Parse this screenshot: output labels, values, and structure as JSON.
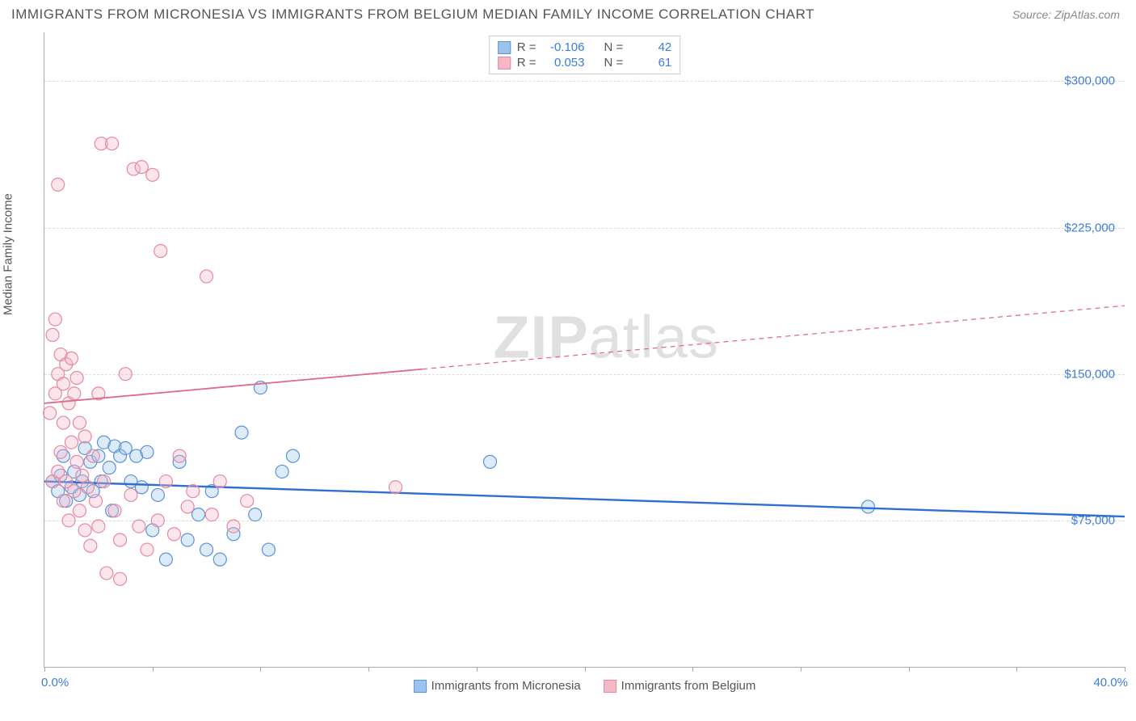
{
  "title": "IMMIGRANTS FROM MICRONESIA VS IMMIGRANTS FROM BELGIUM MEDIAN FAMILY INCOME CORRELATION CHART",
  "source": "Source: ZipAtlas.com",
  "ylabel": "Median Family Income",
  "watermark_bold": "ZIP",
  "watermark_rest": "atlas",
  "chart": {
    "type": "scatter",
    "xlim": [
      0,
      40
    ],
    "ylim": [
      0,
      325000
    ],
    "x_tick_positions": [
      0,
      4,
      8,
      12,
      16,
      20,
      24,
      28,
      32,
      36,
      40
    ],
    "x_start_label": "0.0%",
    "x_end_label": "40.0%",
    "y_gridlines": [
      75000,
      150000,
      225000,
      300000
    ],
    "y_tick_labels": [
      "$75,000",
      "$150,000",
      "$225,000",
      "$300,000"
    ],
    "grid_color": "#dddddd",
    "axis_color": "#aaaaaa",
    "background_color": "#ffffff",
    "ylabel_color": "#3b7dd8",
    "marker_radius": 8,
    "marker_fill_opacity": 0.35,
    "marker_stroke_width": 1.2,
    "series": [
      {
        "name": "Immigrants from Micronesia",
        "color_fill": "#9dc3ec",
        "color_stroke": "#5a94d6",
        "r_value": "-0.106",
        "n_value": "42",
        "trend": {
          "x1": 0,
          "y1": 95000,
          "x2": 40,
          "y2": 77000,
          "color": "#2f6fd0",
          "width": 2.4,
          "solid_until_x": 40
        },
        "points": [
          [
            0.3,
            95000
          ],
          [
            0.5,
            90000
          ],
          [
            0.6,
            98000
          ],
          [
            0.7,
            108000
          ],
          [
            0.8,
            85000
          ],
          [
            1.0,
            92000
          ],
          [
            1.1,
            100000
          ],
          [
            1.3,
            88000
          ],
          [
            1.4,
            95000
          ],
          [
            1.5,
            112000
          ],
          [
            1.7,
            105000
          ],
          [
            1.8,
            90000
          ],
          [
            2.0,
            108000
          ],
          [
            2.1,
            95000
          ],
          [
            2.2,
            115000
          ],
          [
            2.4,
            102000
          ],
          [
            2.5,
            80000
          ],
          [
            2.6,
            113000
          ],
          [
            2.8,
            108000
          ],
          [
            3.0,
            112000
          ],
          [
            3.2,
            95000
          ],
          [
            3.4,
            108000
          ],
          [
            3.6,
            92000
          ],
          [
            3.8,
            110000
          ],
          [
            4.0,
            70000
          ],
          [
            4.2,
            88000
          ],
          [
            4.5,
            55000
          ],
          [
            5.0,
            105000
          ],
          [
            5.3,
            65000
          ],
          [
            5.7,
            78000
          ],
          [
            6.0,
            60000
          ],
          [
            6.2,
            90000
          ],
          [
            6.5,
            55000
          ],
          [
            7.0,
            68000
          ],
          [
            7.3,
            120000
          ],
          [
            7.8,
            78000
          ],
          [
            8.0,
            143000
          ],
          [
            8.3,
            60000
          ],
          [
            8.8,
            100000
          ],
          [
            9.2,
            108000
          ],
          [
            16.5,
            105000
          ],
          [
            30.5,
            82000
          ]
        ]
      },
      {
        "name": "Immigrants from Belgium",
        "color_fill": "#f4b8c6",
        "color_stroke": "#e788a3",
        "r_value": "0.053",
        "n_value": "61",
        "trend": {
          "x1": 0,
          "y1": 135000,
          "x2": 40,
          "y2": 185000,
          "color": "#e06a8a",
          "width": 1.8,
          "solid_until_x": 14
        },
        "points": [
          [
            0.2,
            130000
          ],
          [
            0.3,
            95000
          ],
          [
            0.3,
            170000
          ],
          [
            0.4,
            140000
          ],
          [
            0.4,
            178000
          ],
          [
            0.5,
            100000
          ],
          [
            0.5,
            150000
          ],
          [
            0.5,
            247000
          ],
          [
            0.6,
            110000
          ],
          [
            0.6,
            160000
          ],
          [
            0.7,
            85000
          ],
          [
            0.7,
            125000
          ],
          [
            0.7,
            145000
          ],
          [
            0.8,
            95000
          ],
          [
            0.8,
            155000
          ],
          [
            0.9,
            75000
          ],
          [
            0.9,
            135000
          ],
          [
            1.0,
            115000
          ],
          [
            1.0,
            158000
          ],
          [
            1.1,
            90000
          ],
          [
            1.1,
            140000
          ],
          [
            1.2,
            105000
          ],
          [
            1.2,
            148000
          ],
          [
            1.3,
            80000
          ],
          [
            1.3,
            125000
          ],
          [
            1.4,
            98000
          ],
          [
            1.5,
            70000
          ],
          [
            1.5,
            118000
          ],
          [
            1.6,
            92000
          ],
          [
            1.7,
            62000
          ],
          [
            1.8,
            108000
          ],
          [
            1.9,
            85000
          ],
          [
            2.0,
            72000
          ],
          [
            2.0,
            140000
          ],
          [
            2.1,
            268000
          ],
          [
            2.2,
            95000
          ],
          [
            2.3,
            48000
          ],
          [
            2.5,
            268000
          ],
          [
            2.6,
            80000
          ],
          [
            2.8,
            65000
          ],
          [
            2.8,
            45000
          ],
          [
            3.0,
            150000
          ],
          [
            3.2,
            88000
          ],
          [
            3.3,
            255000
          ],
          [
            3.5,
            72000
          ],
          [
            3.6,
            256000
          ],
          [
            3.8,
            60000
          ],
          [
            4.0,
            252000
          ],
          [
            4.2,
            75000
          ],
          [
            4.3,
            213000
          ],
          [
            4.5,
            95000
          ],
          [
            4.8,
            68000
          ],
          [
            5.0,
            108000
          ],
          [
            5.3,
            82000
          ],
          [
            5.5,
            90000
          ],
          [
            6.0,
            200000
          ],
          [
            6.2,
            78000
          ],
          [
            6.5,
            95000
          ],
          [
            7.0,
            72000
          ],
          [
            7.5,
            85000
          ],
          [
            13.0,
            92000
          ]
        ]
      }
    ]
  },
  "legend_top_labels": {
    "r": "R =",
    "n": "N ="
  }
}
